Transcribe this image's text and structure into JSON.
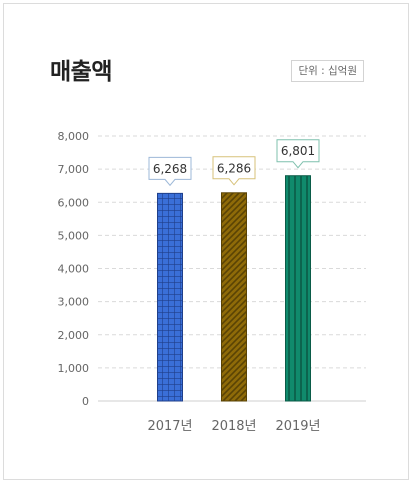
{
  "header": {
    "title": "매출액",
    "unit_label": "단위 : 십억원"
  },
  "chart_data": {
    "type": "bar",
    "categories": [
      "2017년",
      "2018년",
      "2019년"
    ],
    "values": [
      6268,
      6286,
      6801
    ],
    "value_labels": [
      "6,268",
      "6,286",
      "6,801"
    ],
    "ylim": [
      0,
      8000
    ],
    "y_ticks": [
      0,
      1000,
      2000,
      3000,
      4000,
      5000,
      6000,
      7000,
      8000
    ],
    "y_tick_labels": [
      "0",
      "1,000",
      "2,000",
      "3,000",
      "4,000",
      "5,000",
      "6,000",
      "7,000",
      "8,000"
    ],
    "grid": true,
    "colors": [
      "#3a6fd8",
      "#8e6a08",
      "#108a6c"
    ],
    "border_colors": [
      "#1f3f8a",
      "#5a4304",
      "#0a5b47"
    ],
    "label_border_colors": [
      "#9db8d8",
      "#d7c27a",
      "#7fc0ad"
    ],
    "patterns": [
      "grid",
      "diagonal",
      "vertical"
    ]
  }
}
